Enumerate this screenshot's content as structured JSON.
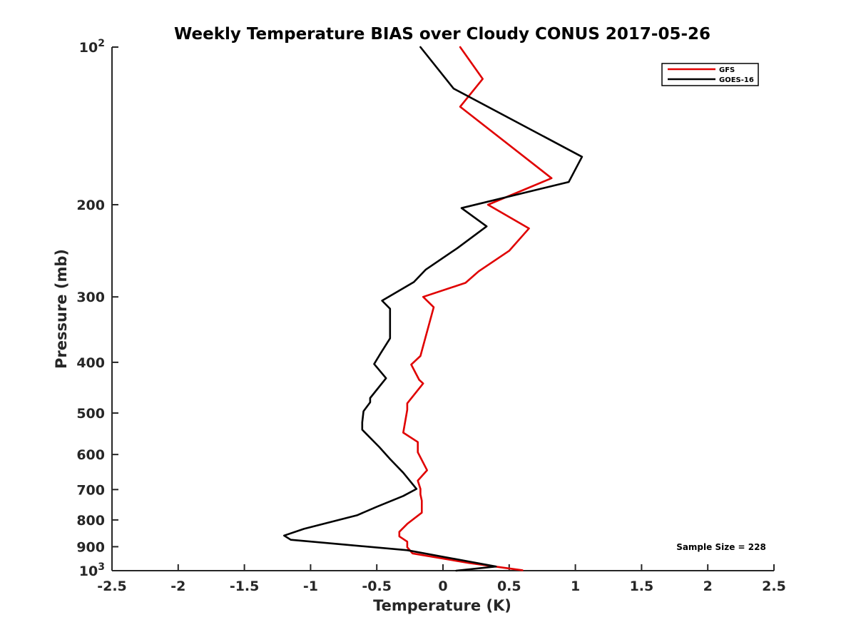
{
  "chart_data": {
    "type": "line",
    "title": "Weekly Temperature BIAS over Cloudy CONUS 2017-05-26",
    "xlabel": "Temperature (K)",
    "ylabel": "Pressure (mb)",
    "xlim": [
      -2.5,
      2.5
    ],
    "ylim": [
      100,
      1000
    ],
    "y_scale": "log",
    "y_direction": "reversed",
    "x_ticks": [
      "-2.5",
      "-2",
      "-1.5",
      "-1",
      "-0.5",
      "0",
      "0.5",
      "1",
      "1.5",
      "2",
      "2.5"
    ],
    "x_tick_values": [
      -2.5,
      -2,
      -1.5,
      -1,
      -0.5,
      0,
      0.5,
      1,
      1.5,
      2,
      2.5
    ],
    "y_ticks": [
      {
        "value": 100,
        "base": "10",
        "exp": "2"
      },
      {
        "value": 200,
        "label": "200"
      },
      {
        "value": 300,
        "label": "300"
      },
      {
        "value": 400,
        "label": "400"
      },
      {
        "value": 500,
        "label": "500"
      },
      {
        "value": 600,
        "label": "600"
      },
      {
        "value": 700,
        "label": "700"
      },
      {
        "value": 800,
        "label": "800"
      },
      {
        "value": 900,
        "label": "900"
      },
      {
        "value": 1000,
        "base": "10",
        "exp": "3"
      }
    ],
    "legend_position": "top-right",
    "annotation": "Sample Size = 228",
    "series": [
      {
        "name": "GFS",
        "color": "#e00000",
        "points": [
          [
            0.13,
            100
          ],
          [
            0.3,
            115
          ],
          [
            0.13,
            130
          ],
          [
            0.82,
            178
          ],
          [
            0.34,
            200
          ],
          [
            0.65,
            222
          ],
          [
            0.5,
            245
          ],
          [
            0.27,
            268
          ],
          [
            0.17,
            282
          ],
          [
            -0.15,
            300
          ],
          [
            -0.07,
            314
          ],
          [
            -0.17,
            389
          ],
          [
            -0.24,
            404
          ],
          [
            -0.18,
            432
          ],
          [
            -0.15,
            439
          ],
          [
            -0.27,
            479
          ],
          [
            -0.27,
            493
          ],
          [
            -0.3,
            545
          ],
          [
            -0.19,
            568
          ],
          [
            -0.19,
            594
          ],
          [
            -0.12,
            643
          ],
          [
            -0.19,
            673
          ],
          [
            -0.17,
            698
          ],
          [
            -0.17,
            715
          ],
          [
            -0.16,
            735
          ],
          [
            -0.16,
            775
          ],
          [
            -0.27,
            814
          ],
          [
            -0.33,
            843
          ],
          [
            -0.33,
            860
          ],
          [
            -0.27,
            880
          ],
          [
            -0.27,
            902
          ],
          [
            -0.23,
            927
          ],
          [
            0.2,
            967
          ],
          [
            0.6,
            998
          ]
        ]
      },
      {
        "name": "GOES-16",
        "color": "#000000",
        "points": [
          [
            -0.17,
            100
          ],
          [
            0.08,
            120
          ],
          [
            1.05,
            162
          ],
          [
            0.95,
            181
          ],
          [
            0.14,
            203
          ],
          [
            0.33,
            220
          ],
          [
            0.11,
            242
          ],
          [
            -0.13,
            266
          ],
          [
            -0.22,
            281
          ],
          [
            -0.46,
            305
          ],
          [
            -0.4,
            316
          ],
          [
            -0.4,
            360
          ],
          [
            -0.47,
            384
          ],
          [
            -0.52,
            403
          ],
          [
            -0.43,
            429
          ],
          [
            -0.55,
            468
          ],
          [
            -0.55,
            477
          ],
          [
            -0.6,
            496
          ],
          [
            -0.61,
            521
          ],
          [
            -0.61,
            538
          ],
          [
            -0.48,
            581
          ],
          [
            -0.4,
            612
          ],
          [
            -0.3,
            650
          ],
          [
            -0.2,
            698
          ],
          [
            -0.3,
            720
          ],
          [
            -0.5,
            755
          ],
          [
            -0.65,
            784
          ],
          [
            -1.05,
            832
          ],
          [
            -1.2,
            857
          ],
          [
            -1.15,
            873
          ],
          [
            -0.27,
            914
          ],
          [
            0.22,
            963
          ],
          [
            0.4,
            982
          ],
          [
            0.1,
            1000
          ]
        ]
      }
    ]
  }
}
